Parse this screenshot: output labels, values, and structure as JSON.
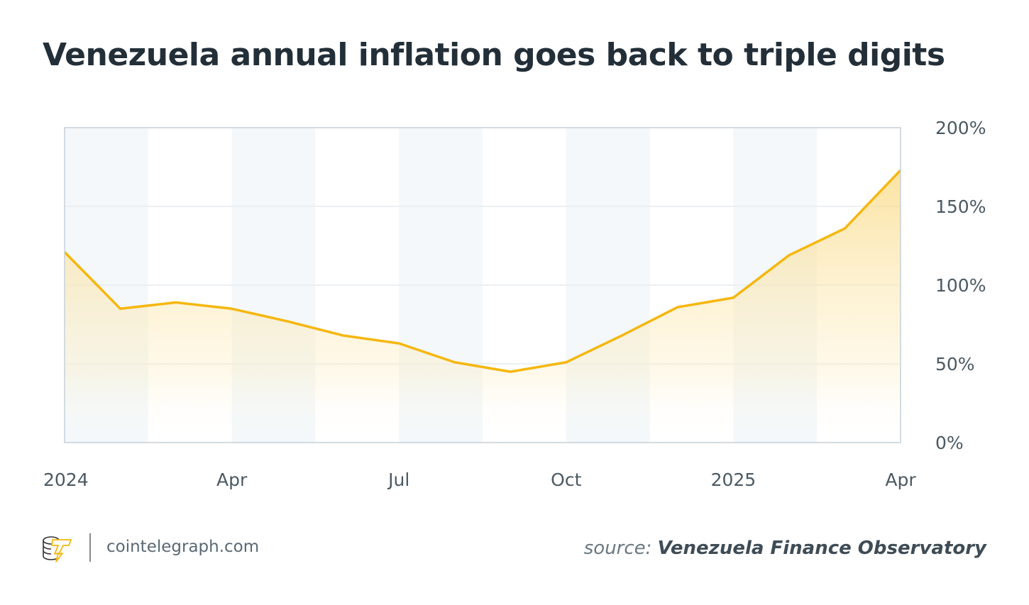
{
  "title": "Venezuela annual inflation goes back to triple digits",
  "footer": {
    "brand": "cointelegraph.com",
    "source_label": "source:",
    "source_name": "Venezuela Finance Observatory",
    "logo_icon": "cointelegraph-coins-bolt-logo"
  },
  "colors": {
    "line": "#f5b70f",
    "band": "#f4f8fa",
    "grid": "#e6ecef",
    "axis": "#c5d1d8"
  },
  "chart_data": {
    "type": "area",
    "title": "Venezuela annual inflation goes back to triple digits",
    "xlabel": "",
    "ylabel": "",
    "x": [
      "2024-01",
      "2024-02",
      "2024-03",
      "2024-04",
      "2024-05",
      "2024-06",
      "2024-07",
      "2024-08",
      "2024-09",
      "2024-10",
      "2024-11",
      "2024-12",
      "2025-01",
      "2025-02",
      "2025-03",
      "2025-04"
    ],
    "values": [
      121,
      85,
      89,
      85,
      77,
      68,
      63,
      51,
      45,
      51,
      68,
      86,
      92,
      119,
      136,
      173
    ],
    "ylim": [
      0,
      200
    ],
    "yticks": [
      "0%",
      "50%",
      "100%",
      "150%",
      "200%"
    ],
    "xticks": [
      {
        "label": "2024",
        "at": "2024-01"
      },
      {
        "label": "Apr",
        "at": "2024-04"
      },
      {
        "label": "Jul",
        "at": "2024-07"
      },
      {
        "label": "Oct",
        "at": "2024-10"
      },
      {
        "label": "2025",
        "at": "2025-01"
      },
      {
        "label": "Apr",
        "at": "2025-04"
      }
    ],
    "grid": true,
    "y_axis_position": "right"
  }
}
